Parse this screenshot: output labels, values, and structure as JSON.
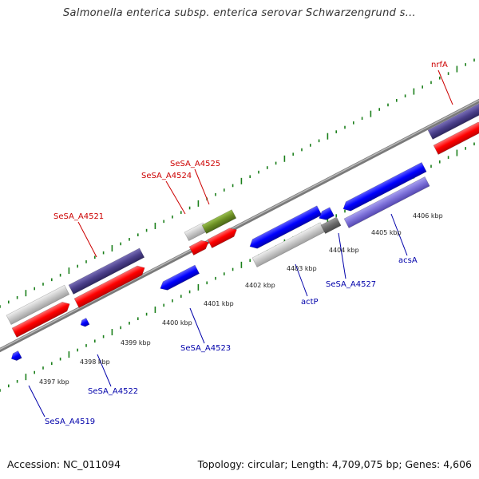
{
  "title": "Salmonella enterica subsp. enterica serovar Schwarzengrund s...",
  "footer": {
    "accession": "Accession: NC_011094",
    "stats": "Topology: circular; Length: 4,709,075 bp; Genes: 4,606"
  },
  "colors": {
    "backbone": "#8a8a8a",
    "tick": "#1a7f1a",
    "cds_plus": "#ff0000",
    "cds_minus": "#0000ff",
    "gene": "#c8c8c8",
    "dark_gene": "#4a3f8a",
    "rna": "#6b8e23",
    "label_plus": "#cc0000",
    "label_minus": "#0000aa"
  },
  "tick_labels": [
    "4397 kbp",
    "4398 kbp",
    "4399 kbp",
    "4400 kbp",
    "4401 kbp",
    "4402 kbp",
    "4403 kbp",
    "4404 kbp",
    "4405 kbp",
    "4406 kbp"
  ],
  "features_top": [
    {
      "name": "SeSA_A4521"
    },
    {
      "name": "SeSA_A4524"
    },
    {
      "name": "SeSA_A4525"
    },
    {
      "name": "nrfA"
    }
  ],
  "features_bottom": [
    {
      "name": "SeSA_A4519"
    },
    {
      "name": "SeSA_A4522"
    },
    {
      "name": "SeSA_A4523"
    },
    {
      "name": "actP"
    },
    {
      "name": "SeSA_A4527"
    },
    {
      "name": "acsA"
    }
  ]
}
